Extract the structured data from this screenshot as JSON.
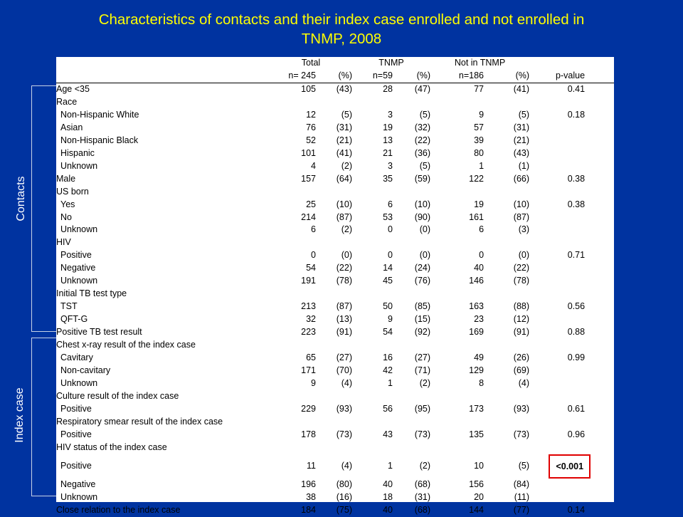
{
  "title": {
    "line1": "Characteristics of contacts and their index case enrolled and not enrolled in",
    "line2": "TNMP, 2008"
  },
  "side_labels": {
    "contacts": "Contacts",
    "index_case": "Index case"
  },
  "table": {
    "group_headers": {
      "total": "Total",
      "tnmp": "TNMP",
      "not_tnmp": "Not in TNMP"
    },
    "sub_headers": {
      "total_n": "n= 245",
      "total_pct": "(%)",
      "tnmp_n": "n=59",
      "tnmp_pct": "(%)",
      "not_n": "n=186",
      "not_pct": "(%)",
      "pvalue": "p-value"
    },
    "rows": [
      {
        "label": "Age <35",
        "indent": false,
        "t": "105",
        "tp": "(43)",
        "e": "28",
        "ep": "(47)",
        "n": "77",
        "np": "(41)",
        "p": "0.41"
      },
      {
        "label": "Race",
        "indent": false,
        "t": "",
        "tp": "",
        "e": "",
        "ep": "",
        "n": "",
        "np": "",
        "p": ""
      },
      {
        "label": "Non-Hispanic White",
        "indent": true,
        "t": "12",
        "tp": "(5)",
        "e": "3",
        "ep": "(5)",
        "n": "9",
        "np": "(5)",
        "p": "0.18"
      },
      {
        "label": "Asian",
        "indent": true,
        "t": "76",
        "tp": "(31)",
        "e": "19",
        "ep": "(32)",
        "n": "57",
        "np": "(31)",
        "p": ""
      },
      {
        "label": "Non-Hispanic Black",
        "indent": true,
        "t": "52",
        "tp": "(21)",
        "e": "13",
        "ep": "(22)",
        "n": "39",
        "np": "(21)",
        "p": ""
      },
      {
        "label": "Hispanic",
        "indent": true,
        "t": "101",
        "tp": "(41)",
        "e": "21",
        "ep": "(36)",
        "n": "80",
        "np": "(43)",
        "p": ""
      },
      {
        "label": "Unknown",
        "indent": true,
        "t": "4",
        "tp": "(2)",
        "e": "3",
        "ep": "(5)",
        "n": "1",
        "np": "(1)",
        "p": ""
      },
      {
        "label": "Male",
        "indent": false,
        "t": "157",
        "tp": "(64)",
        "e": "35",
        "ep": "(59)",
        "n": "122",
        "np": "(66)",
        "p": "0.38"
      },
      {
        "label": "US born",
        "indent": false,
        "t": "",
        "tp": "",
        "e": "",
        "ep": "",
        "n": "",
        "np": "",
        "p": ""
      },
      {
        "label": "Yes",
        "indent": true,
        "t": "25",
        "tp": "(10)",
        "e": "6",
        "ep": "(10)",
        "n": "19",
        "np": "(10)",
        "p": "0.38"
      },
      {
        "label": "No",
        "indent": true,
        "t": "214",
        "tp": "(87)",
        "e": "53",
        "ep": "(90)",
        "n": "161",
        "np": "(87)",
        "p": ""
      },
      {
        "label": "Unknown",
        "indent": true,
        "t": "6",
        "tp": "(2)",
        "e": "0",
        "ep": "(0)",
        "n": "6",
        "np": "(3)",
        "p": ""
      },
      {
        "label": "HIV",
        "indent": false,
        "t": "",
        "tp": "",
        "e": "",
        "ep": "",
        "n": "",
        "np": "",
        "p": ""
      },
      {
        "label": "Positive",
        "indent": true,
        "t": "0",
        "tp": "(0)",
        "e": "0",
        "ep": "(0)",
        "n": "0",
        "np": "(0)",
        "p": "0.71"
      },
      {
        "label": "Negative",
        "indent": true,
        "t": "54",
        "tp": "(22)",
        "e": "14",
        "ep": "(24)",
        "n": "40",
        "np": "(22)",
        "p": ""
      },
      {
        "label": "Unknown",
        "indent": true,
        "t": "191",
        "tp": "(78)",
        "e": "45",
        "ep": "(76)",
        "n": "146",
        "np": "(78)",
        "p": ""
      },
      {
        "label": "Initial TB test type",
        "indent": false,
        "t": "",
        "tp": "",
        "e": "",
        "ep": "",
        "n": "",
        "np": "",
        "p": ""
      },
      {
        "label": "TST",
        "indent": true,
        "t": "213",
        "tp": "(87)",
        "e": "50",
        "ep": "(85)",
        "n": "163",
        "np": "(88)",
        "p": "0.56"
      },
      {
        "label": "QFT-G",
        "indent": true,
        "t": "32",
        "tp": "(13)",
        "e": "9",
        "ep": "(15)",
        "n": "23",
        "np": "(12)",
        "p": ""
      },
      {
        "label": "Positive TB test result",
        "indent": false,
        "t": "223",
        "tp": "(91)",
        "e": "54",
        "ep": "(92)",
        "n": "169",
        "np": "(91)",
        "p": "0.88"
      },
      {
        "label": "Chest x-ray result of the index case",
        "indent": false,
        "t": "",
        "tp": "",
        "e": "",
        "ep": "",
        "n": "",
        "np": "",
        "p": ""
      },
      {
        "label": "Cavitary",
        "indent": true,
        "t": "65",
        "tp": "(27)",
        "e": "16",
        "ep": "(27)",
        "n": "49",
        "np": "(26)",
        "p": "0.99"
      },
      {
        "label": "Non-cavitary",
        "indent": true,
        "t": "171",
        "tp": "(70)",
        "e": "42",
        "ep": "(71)",
        "n": "129",
        "np": "(69)",
        "p": ""
      },
      {
        "label": "Unknown",
        "indent": true,
        "t": "9",
        "tp": "(4)",
        "e": "1",
        "ep": "(2)",
        "n": "8",
        "np": "(4)",
        "p": ""
      },
      {
        "label": "Culture result of the index case",
        "indent": false,
        "t": "",
        "tp": "",
        "e": "",
        "ep": "",
        "n": "",
        "np": "",
        "p": ""
      },
      {
        "label": "Positive",
        "indent": true,
        "t": "229",
        "tp": "(93)",
        "e": "56",
        "ep": "(95)",
        "n": "173",
        "np": "(93)",
        "p": "0.61"
      },
      {
        "label": "Respiratory smear result of the index case",
        "indent": false,
        "t": "",
        "tp": "",
        "e": "",
        "ep": "",
        "n": "",
        "np": "",
        "p": ""
      },
      {
        "label": "Positive",
        "indent": true,
        "t": "178",
        "tp": "(73)",
        "e": "43",
        "ep": "(73)",
        "n": "135",
        "np": "(73)",
        "p": "0.96"
      },
      {
        "label": "HIV status of the index case",
        "indent": false,
        "t": "",
        "tp": "",
        "e": "",
        "ep": "",
        "n": "",
        "np": "",
        "p": ""
      },
      {
        "label": "Positive",
        "indent": true,
        "t": "11",
        "tp": "(4)",
        "e": "1",
        "ep": "(2)",
        "n": "10",
        "np": "(5)",
        "p": "<0.001",
        "highlight": true
      },
      {
        "label": "Negative",
        "indent": true,
        "t": "196",
        "tp": "(80)",
        "e": "40",
        "ep": "(68)",
        "n": "156",
        "np": "(84)",
        "p": ""
      },
      {
        "label": "Unknown",
        "indent": true,
        "t": "38",
        "tp": "(16)",
        "e": "18",
        "ep": "(31)",
        "n": "20",
        "np": "(11)",
        "p": ""
      },
      {
        "label": "Close relation to the index case",
        "indent": false,
        "t": "184",
        "tp": "(75)",
        "e": "40",
        "ep": "(68)",
        "n": "144",
        "np": "(77)",
        "p": "0.14"
      }
    ]
  },
  "colors": {
    "background": "#0033a0",
    "title": "#ffff00",
    "highlight_border": "#e00000"
  }
}
